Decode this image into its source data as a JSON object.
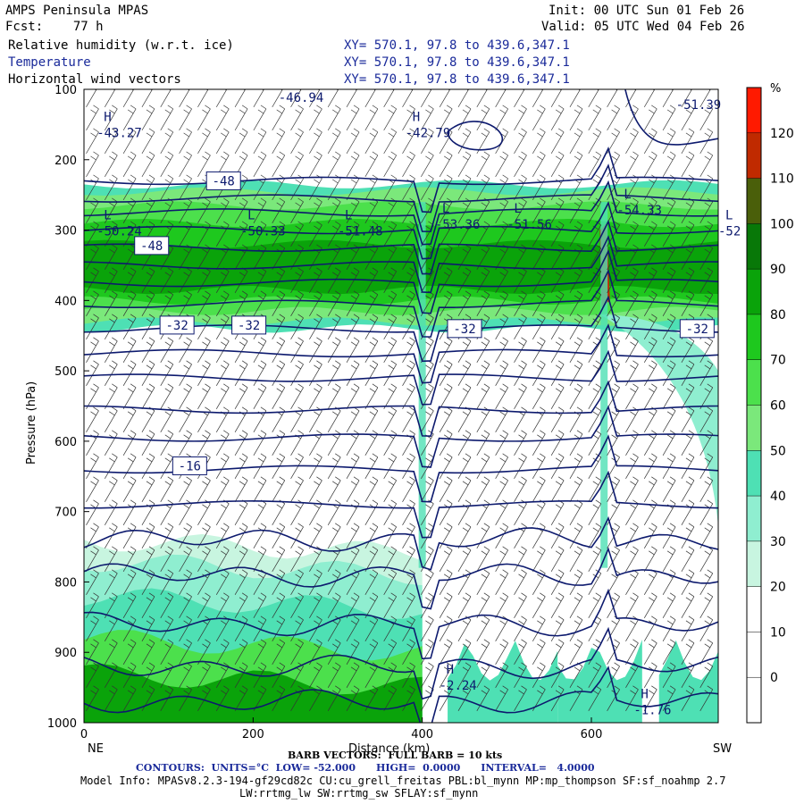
{
  "header": {
    "title": "AMPS Peninsula MPAS",
    "fcst": "Fcst:    77 h",
    "init": "Init: 00 UTC Sun 01 Feb 26",
    "valid": "Valid: 05 UTC Wed 04 Feb 26",
    "fields": [
      {
        "name": "Relative humidity (w.r.t. ice)",
        "xy": "XY= 570.1, 97.8 to 439.6,347.1"
      },
      {
        "name": "Temperature",
        "xy": "XY= 570.1, 97.8 to 439.6,347.1"
      },
      {
        "name": "Horizontal wind vectors",
        "xy": "XY= 570.1, 97.8 to 439.6,347.1"
      }
    ]
  },
  "chart_data": {
    "type": "heatmap",
    "title": "Relative humidity (w.r.t. ice), Temperature, Horizontal wind vectors",
    "xlabel": "Distance (km)",
    "ylabel": "Pressure (hPa)",
    "xlim": [
      0,
      750
    ],
    "ylim": [
      1000,
      100
    ],
    "x_ticks": [
      0,
      200,
      400,
      600
    ],
    "y_ticks": [
      100,
      200,
      300,
      400,
      500,
      600,
      700,
      800,
      900,
      1000
    ],
    "x_ends": {
      "left": "NE",
      "right": "SW"
    },
    "colorbar": {
      "unit": "%",
      "levels": [
        0,
        10,
        20,
        30,
        40,
        50,
        60,
        70,
        80,
        90,
        100,
        110,
        120
      ],
      "colors": [
        "#ffffff",
        "#ffffff",
        "#ffffff",
        "#c8f5e0",
        "#8feed0",
        "#4ee0b4",
        "#7be87b",
        "#4ce04c",
        "#1ec81e",
        "#0aa30a",
        "#087808",
        "#4a5f0a",
        "#c02a00",
        "#ff1a00"
      ]
    },
    "temperature_contours": {
      "units": "°C",
      "low": -52.0,
      "high": 0.0,
      "interval": 4.0,
      "labels": [
        -48,
        -48,
        -32,
        -32,
        -32,
        -32,
        -16
      ]
    },
    "extrema": [
      {
        "kind": "H",
        "value": "-43.27",
        "x": 15,
        "p": 150
      },
      {
        "kind": "H",
        "value": "-42.79",
        "x": 380,
        "p": 150
      },
      {
        "kind": "L",
        "value": "-50.24",
        "x": 15,
        "p": 290
      },
      {
        "kind": "L",
        "value": "-50.33",
        "x": 185,
        "p": 290
      },
      {
        "kind": "L",
        "value": "-51.48",
        "x": 300,
        "p": 290
      },
      {
        "kind": "L",
        "value": "-53.36",
        "x": 415,
        "p": 280
      },
      {
        "kind": "L",
        "value": "-51.56",
        "x": 500,
        "p": 280
      },
      {
        "kind": "L",
        "value": "-54.33",
        "x": 630,
        "p": 260
      },
      {
        "kind": "L",
        "value": "-52",
        "x": 750,
        "p": 290
      },
      {
        "kind": "",
        "value": "-51.39",
        "x": 700,
        "p": 110
      },
      {
        "kind": "",
        "value": "-46.94",
        "x": 230,
        "p": 100
      },
      {
        "kind": "H",
        "value": "-2.24",
        "x": 420,
        "p": 935
      },
      {
        "kind": "H",
        "value": "-1.76",
        "x": 650,
        "p": 970
      }
    ]
  },
  "footer": {
    "barb": "BARB VECTORS:  FULL BARB = 10 kts",
    "contours": "CONTOURS:  UNITS=°C  LOW= -52.000      HIGH=  0.0000      INTERVAL=   4.0000",
    "model1": "Model Info: MPASv8.2.3-194-gf29cd82c CU:cu_grell_freitas PBL:bl_mynn MP:mp_thompson SF:sf_noahmp 2.7",
    "model2": "LW:rrtmg_lw SW:rrtmg_sw SFLAY:sf_mynn"
  }
}
